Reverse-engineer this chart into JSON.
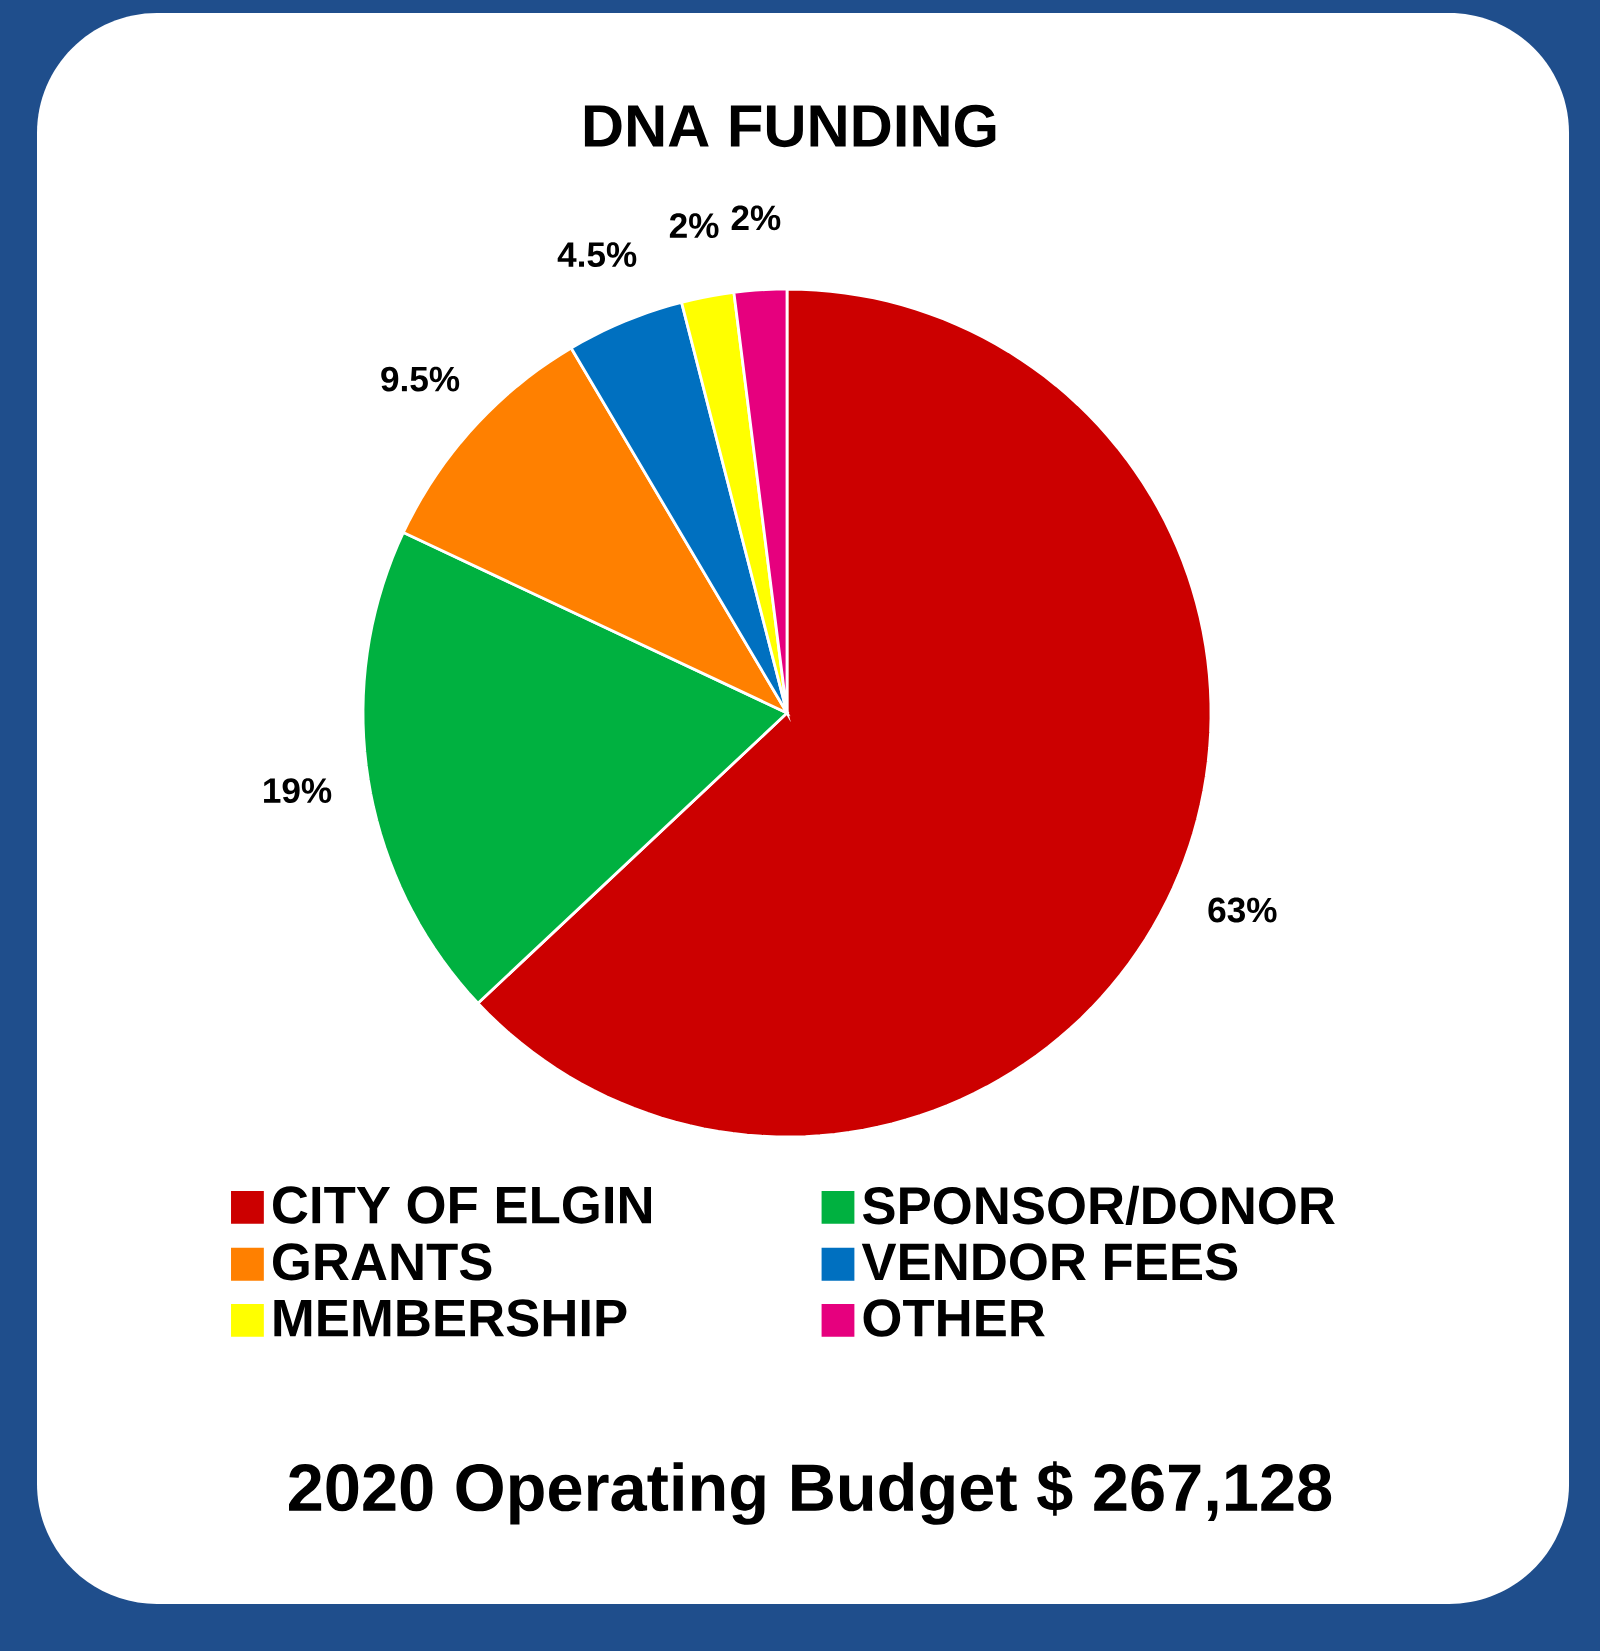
{
  "chart_data": {
    "type": "pie",
    "title": "DNA FUNDING",
    "categories": [
      "CITY OF ELGIN",
      "SPONSOR/DONOR",
      "GRANTS",
      "VENDOR FEES",
      "MEMBERSHIP",
      "OTHER"
    ],
    "values": [
      63,
      19,
      9.5,
      4.5,
      2,
      2
    ],
    "value_labels": [
      "63%",
      "19%",
      "9.5%",
      "4.5%",
      "2%",
      "2%"
    ],
    "colors": [
      "#cc0000",
      "#00b140",
      "#ff8000",
      "#0070c0",
      "#ffff00",
      "#e6007e"
    ],
    "legend": "bottom",
    "annotations": [
      "2020 Operating Budget $ 267,128"
    ]
  }
}
